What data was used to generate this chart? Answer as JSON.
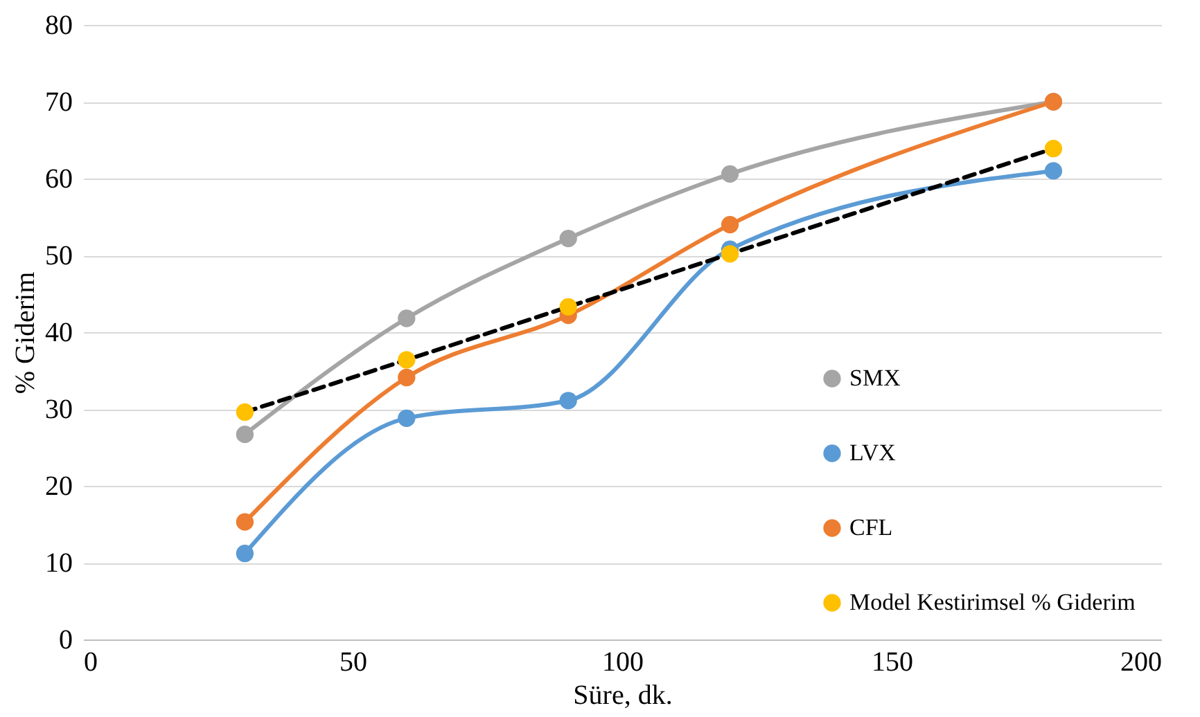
{
  "chart_data": {
    "type": "line",
    "xlabel": "Süre, dk.",
    "ylabel": "% Giderim",
    "x": [
      30,
      60,
      90,
      120,
      180
    ],
    "series": [
      {
        "name": "SMX",
        "color": "#a5a5a5",
        "values": [
          26.7,
          41.8,
          52.2,
          60.6,
          70
        ]
      },
      {
        "name": "LVX",
        "color": "#5b9bd5",
        "values": [
          11.2,
          28.8,
          31.1,
          50.8,
          61
        ]
      },
      {
        "name": "CFL",
        "color": "#ed7d31",
        "values": [
          15.3,
          34.1,
          42.2,
          54,
          70
        ]
      },
      {
        "name": "Model Kestirimsel % Giderim",
        "color": "#ffc000",
        "line_style": "dashed",
        "values": [
          29.6,
          36.4,
          43.3,
          50.2,
          63.9
        ]
      }
    ],
    "xlim": [
      0,
      200
    ],
    "xticks": [
      0,
      50,
      100,
      150,
      200
    ],
    "ylim": [
      0,
      80
    ],
    "yticks": [
      0,
      10,
      20,
      30,
      40,
      50,
      60,
      70,
      80
    ],
    "grid": "y",
    "legend": "bottom right",
    "marker": "circle",
    "line_style": "solid"
  }
}
